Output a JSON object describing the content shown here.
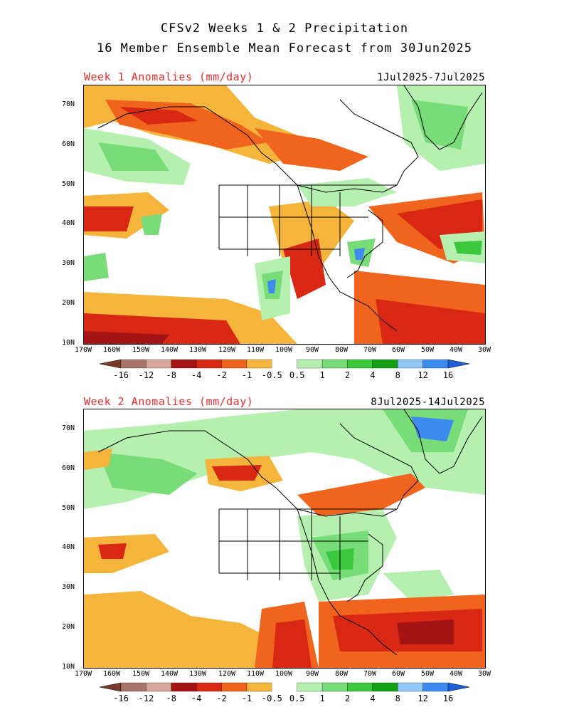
{
  "header": {
    "title_line1": "CFSv2 Weeks 1 & 2 Precipitation",
    "title_line2": "16 Member Ensemble Mean Forecast from 30Jun2025"
  },
  "panels": [
    {
      "label": "Week 1 Anomalies (mm/day)",
      "dates": "1Jul2025-7Jul2025"
    },
    {
      "label": "Week 2 Anomalies (mm/day)",
      "dates": "8Jul2025-14Jul2025"
    }
  ],
  "axes": {
    "lat_labels": [
      "70N",
      "60N",
      "50N",
      "40N",
      "30N",
      "20N",
      "10N"
    ],
    "lon_labels": [
      "170W",
      "160W",
      "150W",
      "140W",
      "130W",
      "120W",
      "110W",
      "100W",
      "90W",
      "80W",
      "70W",
      "60W",
      "50W",
      "40W",
      "30W"
    ]
  },
  "legend": {
    "labels": [
      "-16",
      "-12",
      "-8",
      "-4",
      "-2",
      "-1",
      "-0.5",
      "0.5",
      "1",
      "2",
      "4",
      "8",
      "12",
      "16"
    ],
    "colors": [
      "#7a3a2a",
      "#a8756a",
      "#d8a89c",
      "#a41414",
      "#d82814",
      "#f0641e",
      "#f5b43c",
      "#ffffff",
      "#b6f0b0",
      "#78dc78",
      "#3cc83c",
      "#14a014",
      "#90c8f8",
      "#3c8cf0",
      "#1c60dc"
    ]
  }
}
